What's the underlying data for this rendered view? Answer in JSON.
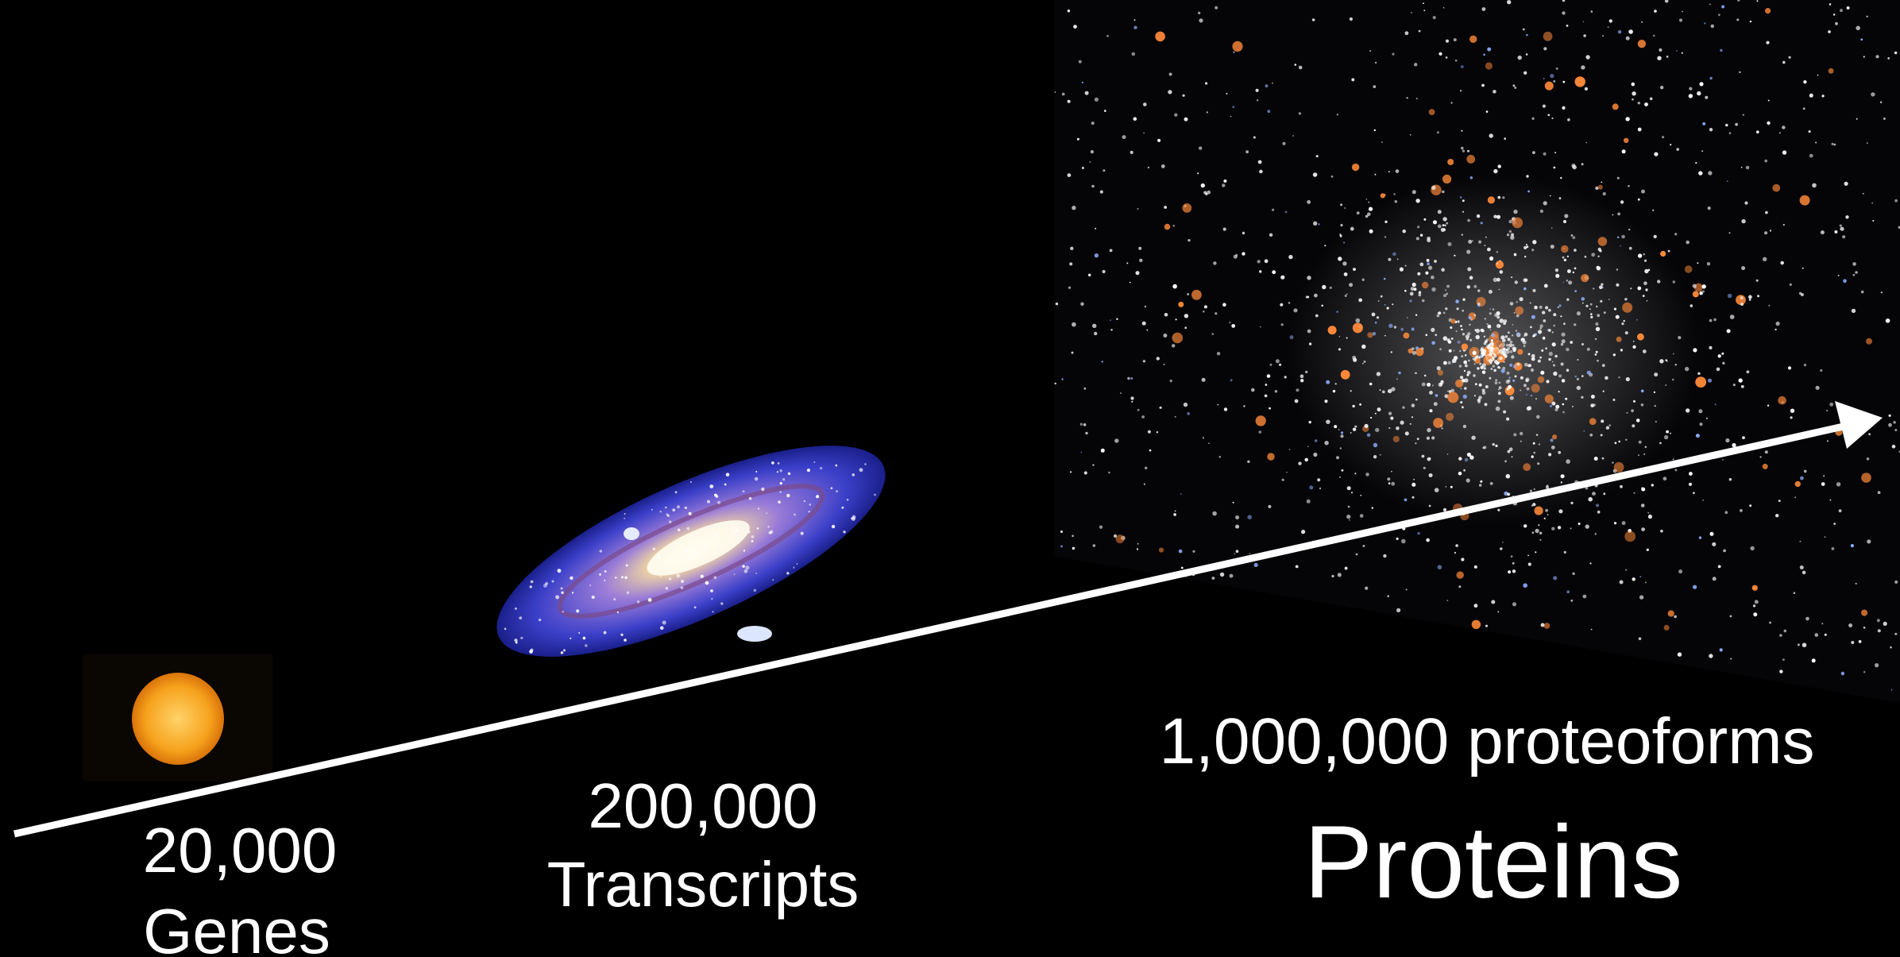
{
  "stages": [
    {
      "count": "20,000",
      "label": "Genes"
    },
    {
      "count": "200,000",
      "label": "Transcripts"
    },
    {
      "count": "1,000,000 proteoforms",
      "label": "Proteins"
    }
  ]
}
